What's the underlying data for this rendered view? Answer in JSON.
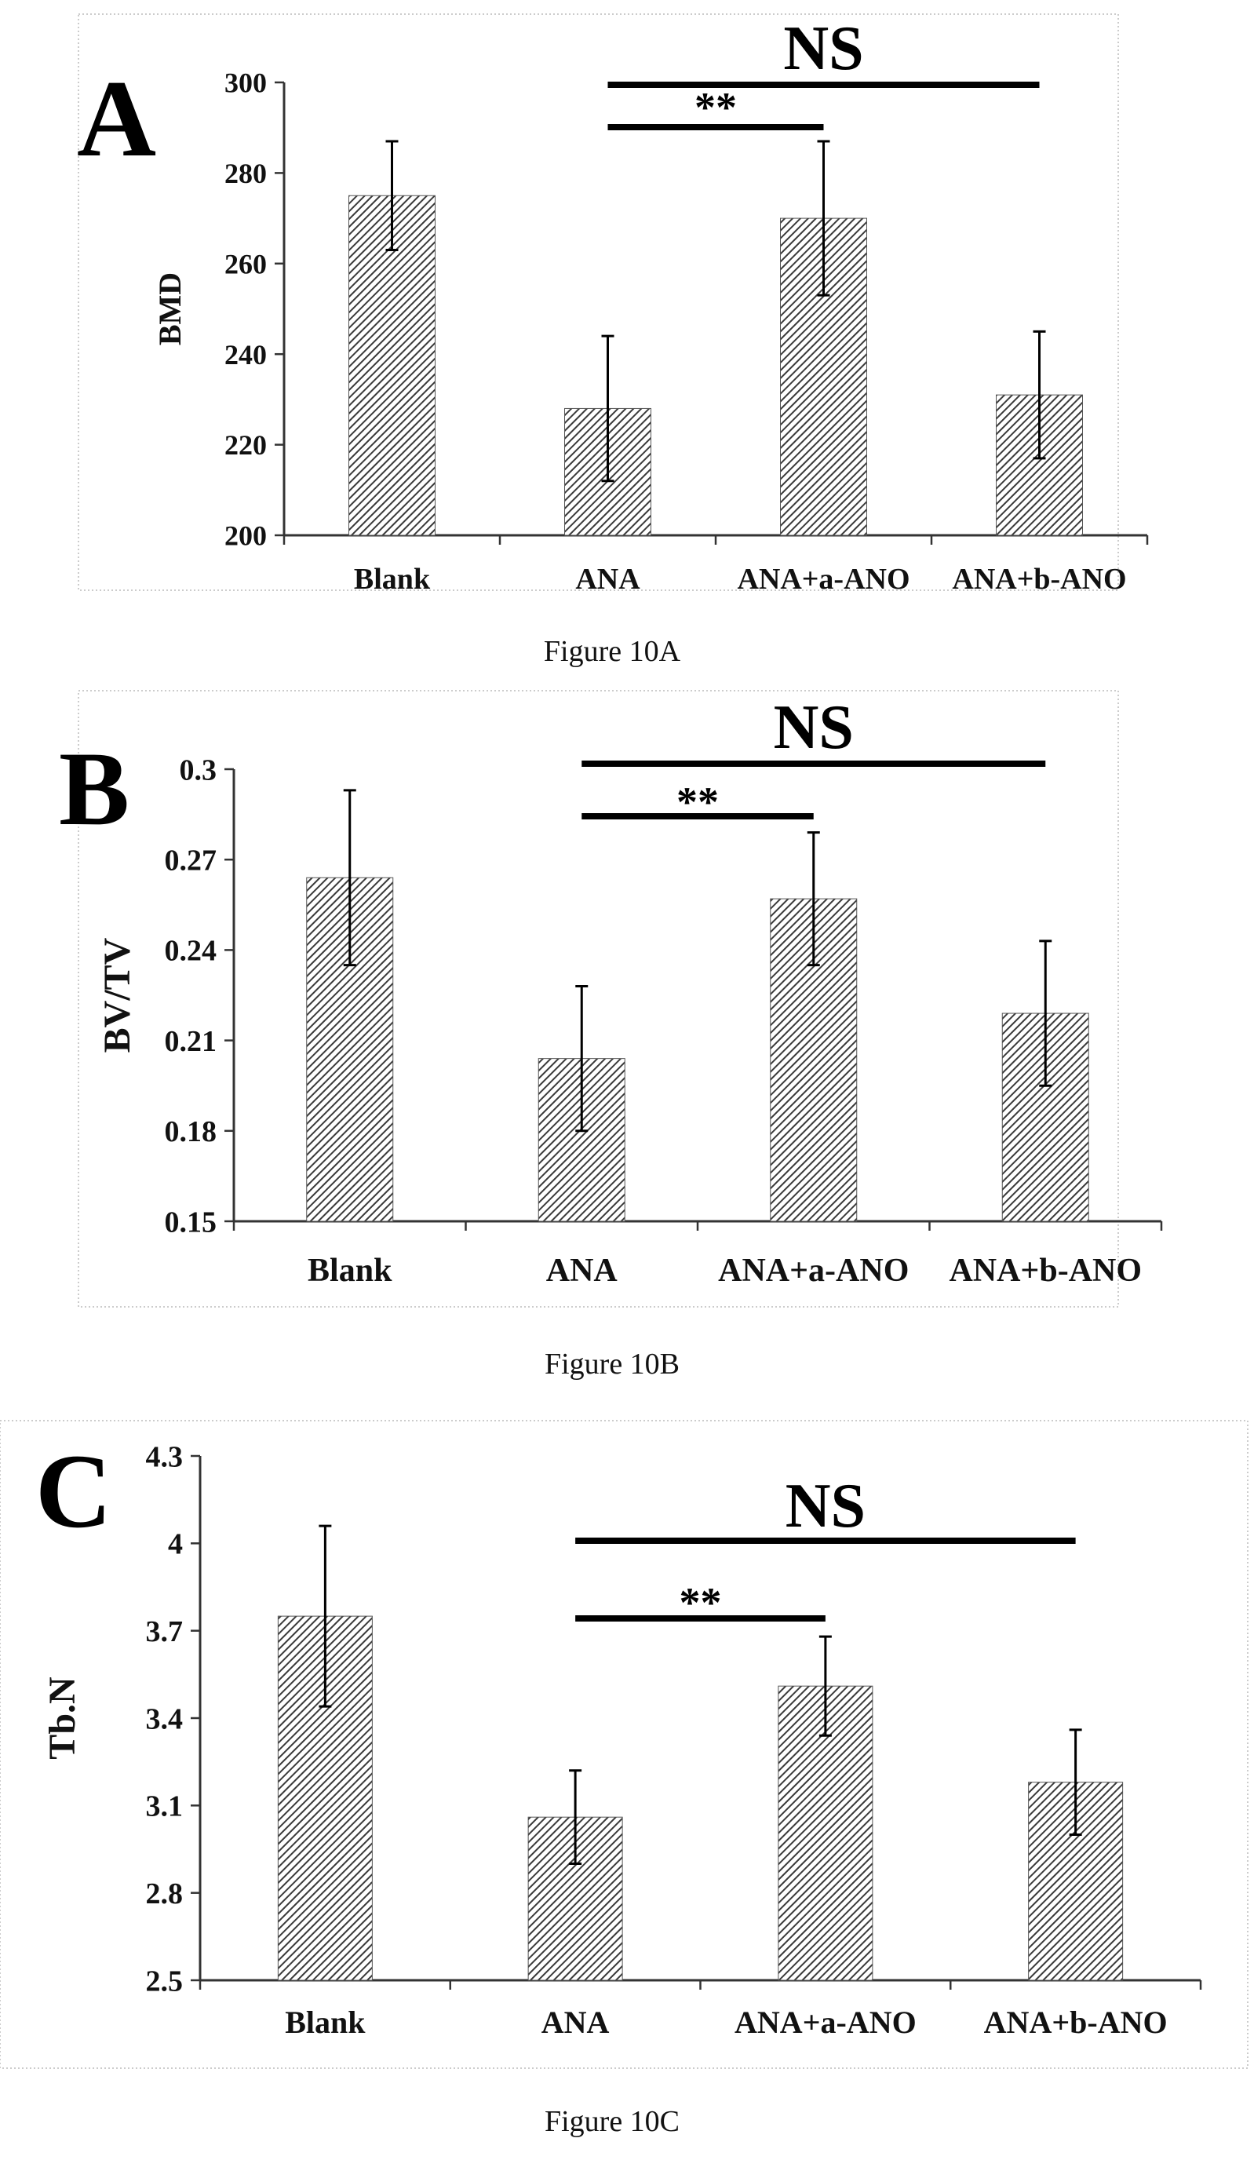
{
  "colors": {
    "bar_stripe": "#3a3a3a",
    "bar_background": "#ffffff",
    "axis": "#333333",
    "frame": "#bbbbbb"
  },
  "chart_data": [
    {
      "type": "bar",
      "panel_label": "A",
      "caption": "Figure 10A",
      "ylabel": "BMD",
      "xlabel": "",
      "categories": [
        "Blank",
        "ANA",
        "ANA+a-ANO",
        "ANA+b-ANO"
      ],
      "values": [
        275,
        228,
        270,
        231
      ],
      "errors": [
        12,
        16,
        17,
        14
      ],
      "ylim": [
        200,
        300
      ],
      "yticks": [
        200,
        220,
        240,
        260,
        280,
        300
      ],
      "ytick_labels": [
        "200",
        "220",
        "240",
        "260",
        "280",
        "300"
      ],
      "grid": false,
      "significance": [
        {
          "from": 1,
          "to": 2,
          "label": "**"
        },
        {
          "from": 1,
          "to": 3,
          "label": "NS"
        }
      ]
    },
    {
      "type": "bar",
      "panel_label": "B",
      "caption": "Figure 10B",
      "ylabel": "BV/TV",
      "xlabel": "",
      "categories": [
        "Blank",
        "ANA",
        "ANA+a-ANO",
        "ANA+b-ANO"
      ],
      "values": [
        0.264,
        0.204,
        0.257,
        0.219
      ],
      "errors": [
        0.029,
        0.024,
        0.022,
        0.024
      ],
      "ylim": [
        0.15,
        0.3
      ],
      "yticks": [
        0.15,
        0.18,
        0.21,
        0.24,
        0.27,
        0.3
      ],
      "ytick_labels": [
        "0.15",
        "0.18",
        "0.21",
        "0.24",
        "0.27",
        "0.3"
      ],
      "grid": false,
      "significance": [
        {
          "from": 1,
          "to": 2,
          "label": "**"
        },
        {
          "from": 1,
          "to": 3,
          "label": "NS"
        }
      ]
    },
    {
      "type": "bar",
      "panel_label": "C",
      "caption": "Figure 10C",
      "ylabel": "Tb.N",
      "xlabel": "",
      "categories": [
        "Blank",
        "ANA",
        "ANA+a-ANO",
        "ANA+b-ANO"
      ],
      "values": [
        3.75,
        3.06,
        3.51,
        3.18
      ],
      "errors": [
        0.31,
        0.16,
        0.17,
        0.18
      ],
      "ylim": [
        2.5,
        4.3
      ],
      "yticks": [
        2.5,
        2.8,
        3.1,
        3.4,
        3.7,
        4.0,
        4.3
      ],
      "ytick_labels": [
        "2.5",
        "2.8",
        "3.1",
        "3.4",
        "3.7",
        "4",
        "4.3"
      ],
      "grid": false,
      "significance": [
        {
          "from": 1,
          "to": 2,
          "label": "**"
        },
        {
          "from": 1,
          "to": 3,
          "label": "NS"
        }
      ]
    }
  ]
}
